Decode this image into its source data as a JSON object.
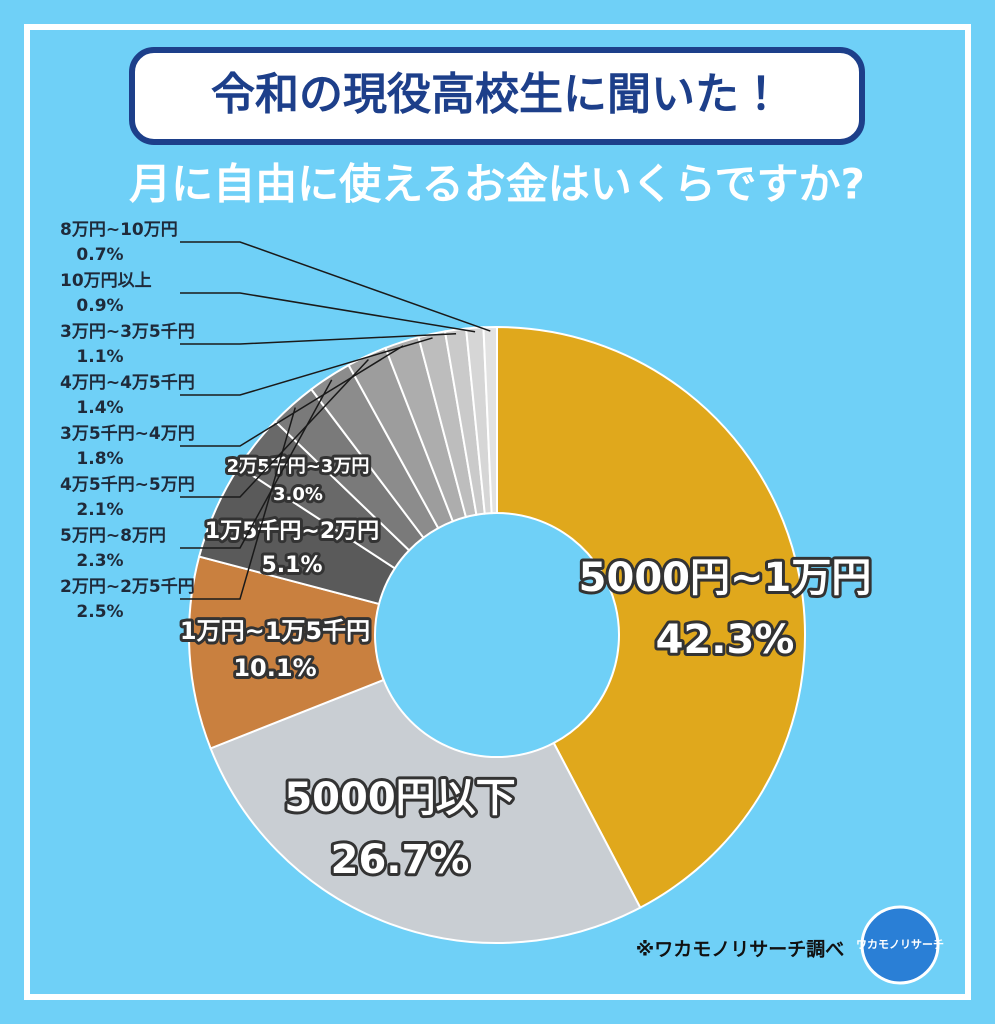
{
  "banner": "令和の現役高校生に聞いた！",
  "chart_data": {
    "type": "donut",
    "title": "月に自由に使えるお金はいくらですか?",
    "categories": [
      "5000円~1万円",
      "5000円以下",
      "1万円~1万5千円",
      "1万5千円~2万円",
      "2万5千円~3万円",
      "2万円~2万5千円",
      "5万円~8万円",
      "4万5千円~5万円",
      "3万5千円~4万円",
      "4万円~4万5千円",
      "3万円~3万5千円",
      "10万円以上",
      "8万円~10万円"
    ],
    "values": [
      42.3,
      26.7,
      10.1,
      5.1,
      3.0,
      2.5,
      2.3,
      2.1,
      1.8,
      1.4,
      1.1,
      0.9,
      0.7
    ],
    "value_labels": [
      "42.3%",
      "26.7%",
      "10.1%",
      "5.1%",
      "3.0%",
      "2.5%",
      "2.3%",
      "2.1%",
      "1.8%",
      "1.4%",
      "1.1%",
      "0.9%",
      "0.7%"
    ],
    "colors": [
      "#e0a81c",
      "#c9ced3",
      "#c9803f",
      "#5a5a5a",
      "#696969",
      "#7a7a7a",
      "#8c8c8c",
      "#9d9d9d",
      "#adadad",
      "#bdbdbd",
      "#cacaca",
      "#d6d6d6",
      "#e2e2e2"
    ]
  },
  "source": "※ワカモノリサーチ調べ",
  "logo": "ワカモノリサーチ"
}
